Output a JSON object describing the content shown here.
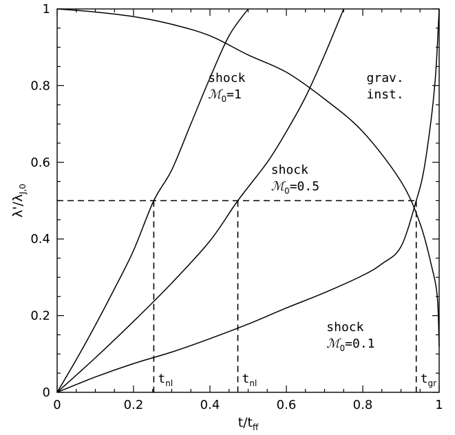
{
  "chart_data": {
    "type": "line",
    "xlabel": "t/t",
    "xlabel_sub": "ff",
    "ylabel": "λ'/λ",
    "ylabel_sub": "J,0",
    "xlim": [
      0,
      1
    ],
    "ylim": [
      0,
      1
    ],
    "x_ticks": [
      "0",
      "0.2",
      "0.4",
      "0.6",
      "0.8",
      "1"
    ],
    "y_ticks": [
      "0",
      "0.2",
      "0.4",
      "0.6",
      "0.8",
      "1"
    ],
    "x_tick_values": [
      0,
      0.2,
      0.4,
      0.6,
      0.8,
      1
    ],
    "y_tick_values": [
      0,
      0.2,
      0.4,
      0.6,
      0.8,
      1
    ],
    "series": [
      {
        "x": [
          0,
          0.05,
          0.1,
          0.15,
          0.2,
          0.253,
          0.3,
          0.35,
          0.4,
          0.45,
          0.5
        ],
        "y": [
          0,
          0.085,
          0.175,
          0.27,
          0.37,
          0.5,
          0.58,
          0.7,
          0.82,
          0.93,
          1.0
        ]
      },
      {
        "x": [
          0,
          0.1,
          0.2,
          0.3,
          0.4,
          0.473,
          0.55,
          0.6,
          0.65,
          0.7,
          0.75
        ],
        "y": [
          0,
          0.09,
          0.185,
          0.285,
          0.395,
          0.5,
          0.6,
          0.68,
          0.77,
          0.88,
          1.0
        ]
      },
      {
        "x": [
          0,
          0.1,
          0.2,
          0.3,
          0.4,
          0.5,
          0.6,
          0.7,
          0.8,
          0.85,
          0.9,
          0.94,
          0.96,
          0.98,
          0.99,
          0.995,
          1.0
        ],
        "y": [
          0,
          0.04,
          0.075,
          0.105,
          0.14,
          0.178,
          0.22,
          0.26,
          0.305,
          0.335,
          0.38,
          0.5,
          0.58,
          0.72,
          0.82,
          0.9,
          1.0
        ]
      },
      {
        "x": [
          0,
          0.1,
          0.2,
          0.3,
          0.4,
          0.5,
          0.6,
          0.7,
          0.8,
          0.9,
          0.95,
          0.98,
          0.995,
          1.0
        ],
        "y": [
          1.0,
          0.992,
          0.98,
          0.96,
          0.93,
          0.88,
          0.835,
          0.765,
          0.68,
          0.55,
          0.44,
          0.33,
          0.25,
          0.12
        ]
      }
    ],
    "reference_line": {
      "y": 0.5
    },
    "markers": [
      {
        "x": 0.253,
        "label": "t",
        "sub": "nl"
      },
      {
        "x": 0.473,
        "label": "t",
        "sub": "nl"
      },
      {
        "x": 0.94,
        "label": "t",
        "sub": "gr"
      }
    ],
    "annotations": [
      {
        "line1": "shock",
        "line2_sym": "ℳ",
        "line2_sub": "0",
        "line2_rest": "=1",
        "x": 0.395,
        "y": 0.81
      },
      {
        "line1": "shock",
        "line2_sym": "ℳ",
        "line2_sub": "0",
        "line2_rest": "=0.5",
        "x": 0.56,
        "y": 0.57
      },
      {
        "line1": "shock",
        "line2_sym": "ℳ",
        "line2_sub": "0",
        "line2_rest": "=0.1",
        "x": 0.705,
        "y": 0.16
      },
      {
        "line1": "grav.",
        "line2_sym": "",
        "line2_sub": "",
        "line2_rest": "inst.",
        "x": 0.81,
        "y": 0.81
      }
    ]
  }
}
